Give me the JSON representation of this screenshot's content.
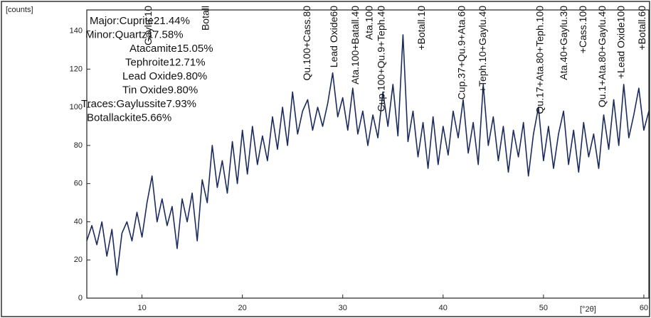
{
  "chart_data": {
    "type": "line",
    "y_label": "[counts]",
    "x_label": "[°2θ]",
    "color": "#1c2b5e",
    "xlim": [
      4.5,
      60.5
    ],
    "ylim": [
      0,
      151
    ],
    "xticks": [
      10,
      20,
      30,
      40,
      50,
      60
    ],
    "yticks": [
      0,
      20,
      40,
      60,
      80,
      100,
      120,
      140
    ],
    "x": [
      4.5,
      5,
      5.5,
      6,
      6.5,
      7,
      7.5,
      8,
      8.5,
      9,
      9.5,
      10,
      10.5,
      11,
      11.5,
      12,
      12.5,
      13,
      13.5,
      14,
      14.5,
      15,
      15.5,
      16,
      16.5,
      17,
      17.5,
      18,
      18.5,
      19,
      19.5,
      20,
      20.5,
      21,
      21.5,
      22,
      22.5,
      23,
      23.5,
      24,
      24.5,
      25,
      25.5,
      26,
      26.5,
      27,
      27.5,
      28,
      28.5,
      29,
      29.5,
      30,
      30.5,
      31,
      31.5,
      32,
      32.5,
      33,
      33.5,
      34,
      34.5,
      35,
      35.5,
      36,
      36.5,
      37,
      37.5,
      38,
      38.5,
      39,
      39.5,
      40,
      40.5,
      41,
      41.5,
      42,
      42.5,
      43,
      43.5,
      44,
      44.5,
      45,
      45.5,
      46,
      46.5,
      47,
      47.5,
      48,
      48.5,
      49,
      49.5,
      50,
      50.5,
      51,
      51.5,
      52,
      52.5,
      53,
      53.5,
      54,
      54.5,
      55,
      55.5,
      56,
      56.5,
      57,
      57.5,
      58,
      58.5,
      59,
      59.5,
      60,
      60.5
    ],
    "values": [
      30,
      38,
      28,
      40,
      22,
      36,
      12,
      34,
      40,
      30,
      45,
      32,
      50,
      64,
      40,
      52,
      38,
      48,
      26,
      52,
      40,
      55,
      30,
      62,
      50,
      80,
      58,
      72,
      55,
      82,
      60,
      88,
      65,
      90,
      70,
      85,
      72,
      95,
      78,
      100,
      80,
      108,
      86,
      98,
      104,
      88,
      100,
      90,
      102,
      118,
      95,
      105,
      88,
      110,
      86,
      98,
      80,
      96,
      84,
      108,
      90,
      112,
      85,
      138,
      82,
      98,
      74,
      92,
      68,
      95,
      70,
      90,
      75,
      98,
      84,
      104,
      76,
      92,
      70,
      112,
      80,
      95,
      72,
      90,
      66,
      88,
      74,
      92,
      64,
      86,
      100,
      72,
      90,
      68,
      86,
      98,
      70,
      88,
      66,
      92,
      74,
      86,
      68,
      96,
      78,
      104,
      80,
      112,
      84,
      96,
      110,
      88,
      98
    ],
    "composition": [
      "Major:Cuprite21.44%",
      "Minor:Quartz17.58%",
      "Atacamite15.05%",
      "Tephroite12.71%",
      "Lead Oxide9.80%",
      "Tin Oxide9.80%",
      "Traces:Gaylussite7.93%",
      "Botallackite5.66%"
    ],
    "peaks": [
      {
        "text": "Gaylu.10",
        "x": 10.7
      },
      {
        "text": "Botall",
        "x": 16.4
      },
      {
        "text": "Qu.100+Cass.80",
        "x": 26.5
      },
      {
        "text": "Lead Oxide60",
        "x": 29.2
      },
      {
        "text": "Ata.100+Batall.40",
        "x": 31.3
      },
      {
        "text": "Ata.100",
        "x": 32.7
      },
      {
        "text": "Cup.100+Qu.9+Teph.40",
        "x": 33.9
      },
      {
        "text": "+Botall.10",
        "x": 37.9
      },
      {
        "text": "Cup.37+Qu.9+Ata.60",
        "x": 41.9
      },
      {
        "text": "+Teph.10+Gaylu.40",
        "x": 44.0
      },
      {
        "text": "Qu.17+Ata.80+Teph.100",
        "x": 49.7
      },
      {
        "text": "Ata.40+Gaylu.30",
        "x": 52.1
      },
      {
        "text": "+Cass.100",
        "x": 54.0
      },
      {
        "text": "Qu.1+Ata.80+Gaylu.40",
        "x": 55.9
      },
      {
        "text": "+Lead Oxide100",
        "x": 57.8
      },
      {
        "text": "+Botall.60",
        "x": 59.9
      }
    ]
  }
}
